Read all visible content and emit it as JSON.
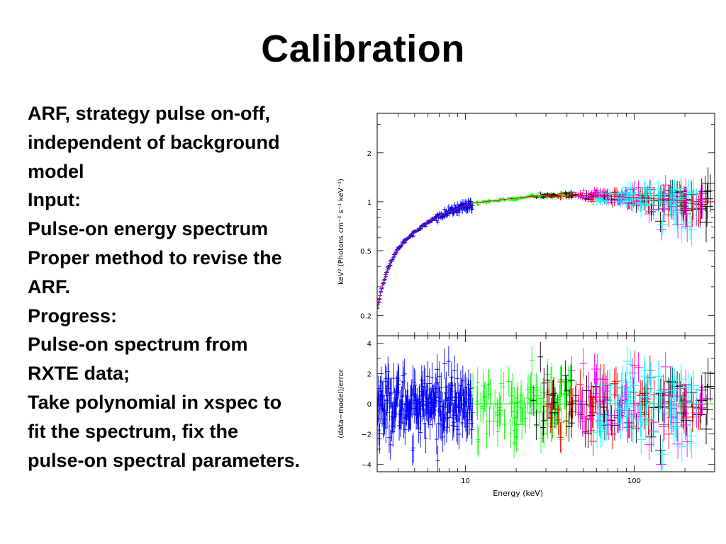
{
  "slide": {
    "title": "Calibration",
    "lines": [
      "ARF, strategy pulse on-off,",
      "independent of background",
      "model",
      "Input:",
      "Pulse-on energy spectrum",
      "Proper method to revise the",
      "ARF.",
      "Progress:",
      "Pulse-on spectrum from",
      "RXTE data;",
      "Take polynomial in xspec to",
      "fit the spectrum, fix the",
      "pulse-on spectral parameters."
    ]
  },
  "chart_data": [
    {
      "type": "scatter",
      "panel": "spectrum",
      "title": "",
      "xlabel": "",
      "ylabel": "keV² (Photons cm⁻² s⁻¹ keV⁻¹)",
      "xscale": "log",
      "yscale": "log",
      "xlim": [
        3,
        300
      ],
      "ylim": [
        0.15,
        3.5
      ],
      "yticks": [
        0.2,
        0.5,
        1,
        2
      ],
      "ytick_labels": [
        "0.2",
        "0.5",
        "1",
        "2"
      ],
      "grid": false,
      "legend": "none",
      "series": [
        {
          "color": "#0000ff",
          "x": [
            3.0,
            3.3,
            3.7,
            4.2,
            4.8,
            5.5,
            6.3,
            7.2,
            8.3,
            9.5,
            11.0
          ],
          "y": [
            0.22,
            0.33,
            0.45,
            0.55,
            0.63,
            0.7,
            0.77,
            0.83,
            0.88,
            0.93,
            0.97
          ]
        },
        {
          "color": "#00ff00",
          "x": [
            11,
            13,
            15,
            18,
            21,
            25,
            30,
            36,
            43
          ],
          "y": [
            0.98,
            1.0,
            1.02,
            1.04,
            1.06,
            1.08,
            1.09,
            1.1,
            1.1
          ]
        },
        {
          "color": "#ff0000",
          "x": [
            30,
            40,
            55,
            75,
            100,
            140,
            190,
            250
          ],
          "y": [
            1.09,
            1.1,
            1.09,
            1.08,
            1.06,
            1.04,
            1.02,
            1.0
          ]
        },
        {
          "color": "#000000",
          "x": [
            25,
            35,
            50,
            70,
            100,
            150,
            220,
            290
          ],
          "y": [
            1.08,
            1.1,
            1.1,
            1.09,
            1.06,
            1.03,
            1.01,
            0.99
          ]
        },
        {
          "color": "#ff00ff",
          "x": [
            40,
            60,
            90,
            130,
            180,
            260
          ],
          "y": [
            1.1,
            1.09,
            1.07,
            1.05,
            1.02,
            0.99
          ]
        },
        {
          "color": "#00ffff",
          "x": [
            60,
            100,
            160,
            240
          ],
          "y": [
            1.08,
            1.06,
            1.03,
            1.0
          ]
        }
      ]
    },
    {
      "type": "scatter",
      "panel": "residuals",
      "title": "",
      "xlabel": "Energy (keV)",
      "ylabel": "(data−model)/error",
      "xscale": "log",
      "xlim": [
        3,
        300
      ],
      "ylim": [
        -4.5,
        4.5
      ],
      "yticks": [
        -4,
        -2,
        0,
        2,
        4
      ],
      "ytick_labels": [
        "−4",
        "−2",
        "0",
        "2",
        "4"
      ],
      "xticks": [
        10,
        100
      ],
      "xtick_labels": [
        "10",
        "100"
      ],
      "grid": false,
      "legend": "none",
      "zero_line": 0,
      "series": [
        {
          "color": "#0000ff",
          "x": [
            3.5,
            5,
            7,
            9.5
          ],
          "y": [
            0.2,
            -0.3,
            0.4,
            -0.1
          ]
        },
        {
          "color": "#00ff00",
          "x": [
            13,
            20,
            35
          ],
          "y": [
            0.1,
            -0.2,
            0.3
          ]
        },
        {
          "color": "#ff0000",
          "x": [
            35,
            70,
            150
          ],
          "y": [
            0.3,
            -0.4,
            0.2
          ]
        },
        {
          "color": "#000000",
          "x": [
            30,
            60,
            200
          ],
          "y": [
            -0.5,
            0.4,
            -0.2
          ]
        },
        {
          "color": "#ff00ff",
          "x": [
            50,
            120,
            250
          ],
          "y": [
            0.2,
            -0.3,
            0.4
          ]
        },
        {
          "color": "#00ffff",
          "x": [
            80,
            180
          ],
          "y": [
            -0.2,
            0.3
          ]
        }
      ]
    }
  ]
}
